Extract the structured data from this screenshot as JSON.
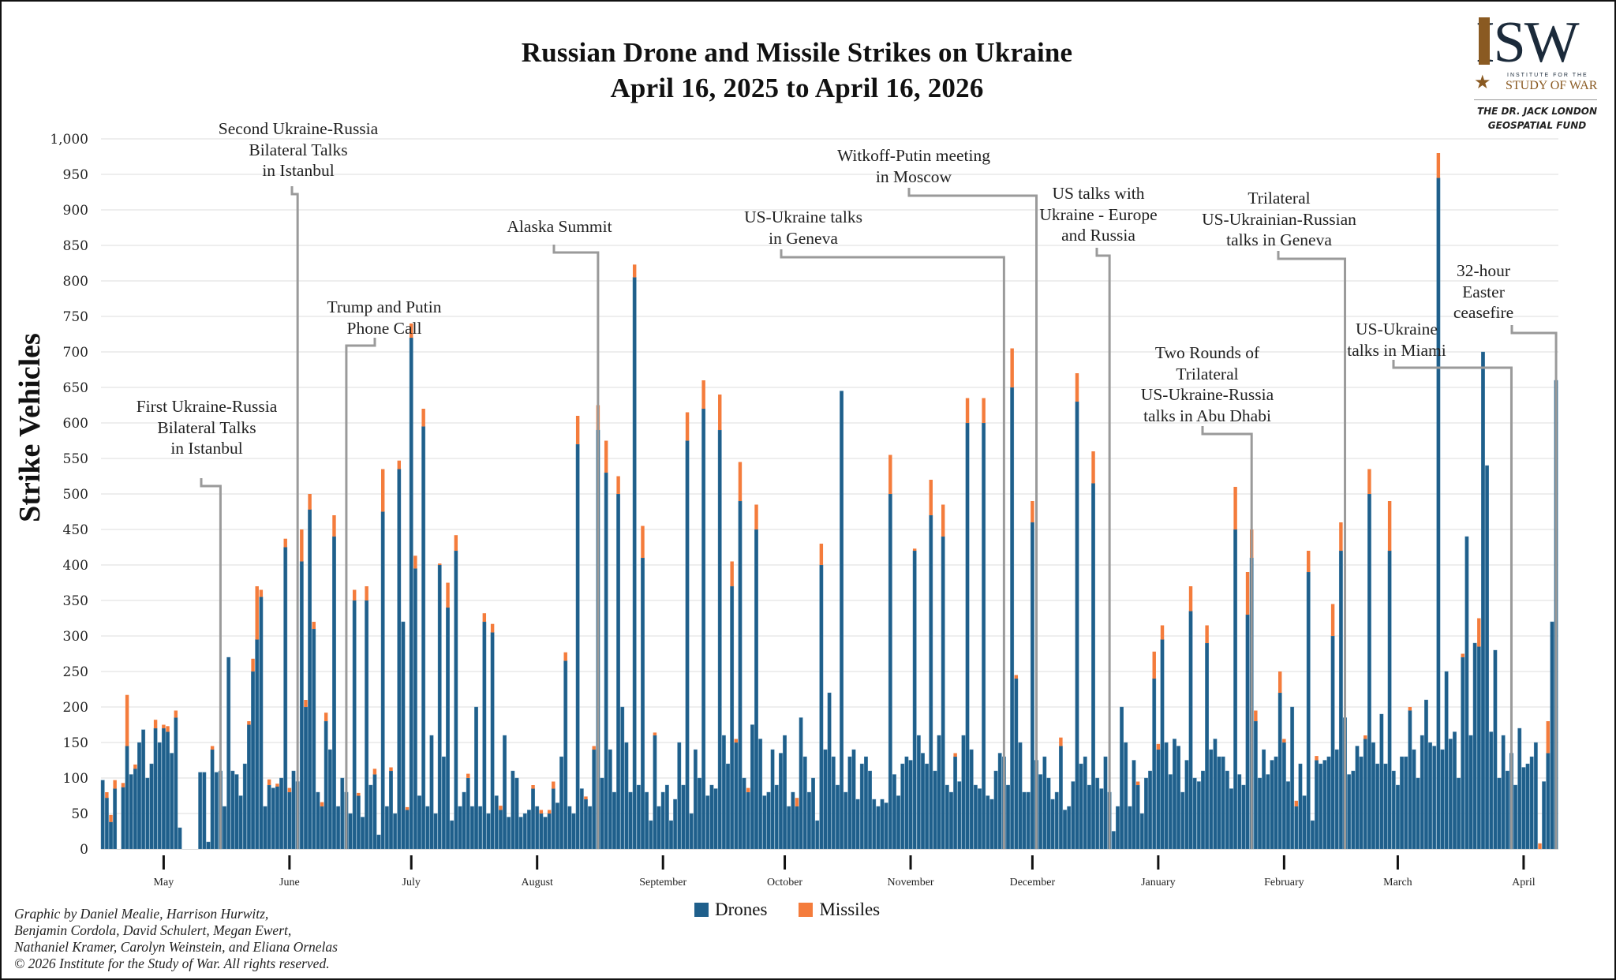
{
  "chart_data": {
    "type": "bar",
    "stacked": true,
    "title": "Russian Drone and Missile Strikes on Ukraine",
    "subtitle": "April 16, 2025 to April 16, 2026",
    "xlabel": "",
    "ylabel": "Strike Vehicles",
    "ylim": [
      0,
      1000
    ],
    "yticks": [
      0,
      50,
      100,
      150,
      200,
      250,
      300,
      350,
      400,
      450,
      500,
      550,
      600,
      650,
      700,
      750,
      800,
      850,
      900,
      950,
      1000
    ],
    "ytick_labels": [
      "0",
      "50",
      "100",
      "150",
      "200",
      "250",
      "300",
      "350",
      "400",
      "450",
      "500",
      "550",
      "600",
      "650",
      "700",
      "750",
      "800",
      "850",
      "900",
      "950",
      "1,000"
    ],
    "grid": true,
    "x_start": "2025-04-16",
    "x_end": "2026-04-16",
    "month_ticks": [
      {
        "label": "May",
        "day_index": 15
      },
      {
        "label": "June",
        "day_index": 46
      },
      {
        "label": "July",
        "day_index": 76
      },
      {
        "label": "August",
        "day_index": 107
      },
      {
        "label": "September",
        "day_index": 138
      },
      {
        "label": "October",
        "day_index": 168
      },
      {
        "label": "November",
        "day_index": 199
      },
      {
        "label": "December",
        "day_index": 229
      },
      {
        "label": "January",
        "day_index": 260
      },
      {
        "label": "February",
        "day_index": 291
      },
      {
        "label": "March",
        "day_index": 319
      },
      {
        "label": "April",
        "day_index": 350
      }
    ],
    "legend": {
      "position": "bottom-center",
      "entries": [
        "Drones",
        "Missiles"
      ]
    },
    "series": [
      {
        "name": "Drones",
        "color": "#1f5f8b",
        "values": [
          97,
          72,
          38,
          85,
          0,
          87,
          145,
          105,
          113,
          150,
          168,
          100,
          120,
          170,
          150,
          170,
          165,
          135,
          185,
          30,
          0,
          0,
          0,
          0,
          108,
          108,
          10,
          140,
          108,
          110,
          60,
          270,
          110,
          105,
          75,
          120,
          175,
          250,
          295,
          355,
          60,
          90,
          86,
          88,
          100,
          425,
          80,
          110,
          95,
          405,
          200,
          478,
          310,
          80,
          60,
          180,
          140,
          440,
          60,
          100,
          80,
          50,
          350,
          75,
          45,
          350,
          90,
          105,
          20,
          475,
          60,
          110,
          50,
          535,
          320,
          55,
          720,
          395,
          75,
          595,
          60,
          160,
          50,
          400,
          130,
          340,
          40,
          420,
          60,
          80,
          100,
          60,
          200,
          60,
          320,
          50,
          305,
          75,
          55,
          160,
          45,
          110,
          100,
          45,
          50,
          55,
          85,
          60,
          50,
          45,
          50,
          85,
          65,
          130,
          265,
          60,
          50,
          570,
          85,
          70,
          60,
          140,
          590,
          100,
          530,
          140,
          80,
          500,
          200,
          150,
          80,
          805,
          90,
          410,
          80,
          40,
          160,
          60,
          80,
          90,
          40,
          70,
          150,
          90,
          575,
          50,
          140,
          100,
          620,
          75,
          90,
          85,
          590,
          160,
          120,
          370,
          150,
          490,
          100,
          80,
          175,
          450,
          155,
          75,
          80,
          140,
          90,
          135,
          160,
          60,
          80,
          60,
          185,
          130,
          80,
          100,
          40,
          400,
          140,
          220,
          130,
          90,
          645,
          80,
          130,
          140,
          70,
          120,
          130,
          110,
          70,
          60,
          70,
          65,
          500,
          105,
          75,
          120,
          130,
          125,
          420,
          160,
          135,
          120,
          470,
          110,
          160,
          440,
          90,
          80,
          130,
          95,
          160,
          600,
          140,
          90,
          85,
          600,
          75,
          70,
          110,
          135,
          130,
          90,
          650,
          240,
          150,
          80,
          80,
          460,
          125,
          105,
          130,
          100,
          70,
          80,
          145,
          55,
          60,
          95,
          630,
          120,
          130,
          90,
          515,
          100,
          85,
          130,
          80,
          25,
          60,
          200,
          150,
          60,
          125,
          90,
          50,
          100,
          110,
          240,
          140,
          295,
          150,
          105,
          155,
          145,
          80,
          125,
          335,
          100,
          95,
          110,
          290,
          140,
          155,
          130,
          130,
          110,
          85,
          450,
          105,
          90,
          330,
          410,
          180,
          100,
          140,
          105,
          125,
          130,
          220,
          150,
          95,
          200,
          60,
          120,
          75,
          390,
          40,
          125,
          120,
          125,
          130,
          300,
          140,
          420,
          185,
          105,
          110,
          145,
          130,
          155,
          500,
          150,
          120,
          190,
          120,
          420,
          110,
          90,
          130,
          130,
          195,
          140,
          100,
          160,
          210,
          150,
          145,
          945,
          140,
          250,
          155,
          165,
          100,
          270,
          440,
          160,
          290,
          285,
          700,
          540,
          165,
          280,
          100,
          160,
          110,
          135,
          90,
          170,
          115,
          120,
          130,
          150,
          0,
          95,
          135,
          320,
          660
        ]
      },
      {
        "name": "Missiles",
        "color": "#f47c3c",
        "values": [
          0,
          8,
          10,
          12,
          0,
          6,
          72,
          0,
          6,
          0,
          0,
          0,
          0,
          12,
          0,
          5,
          8,
          0,
          10,
          0,
          0,
          0,
          0,
          0,
          0,
          0,
          0,
          5,
          0,
          0,
          0,
          0,
          0,
          0,
          0,
          0,
          5,
          18,
          75,
          10,
          0,
          8,
          0,
          4,
          0,
          12,
          6,
          0,
          0,
          45,
          10,
          22,
          10,
          0,
          6,
          12,
          0,
          30,
          0,
          0,
          0,
          0,
          15,
          4,
          0,
          20,
          0,
          8,
          0,
          60,
          0,
          5,
          0,
          12,
          0,
          4,
          20,
          18,
          0,
          25,
          0,
          0,
          0,
          2,
          0,
          35,
          0,
          22,
          0,
          0,
          6,
          0,
          0,
          0,
          12,
          0,
          12,
          0,
          6,
          0,
          0,
          0,
          0,
          0,
          0,
          0,
          5,
          0,
          5,
          0,
          5,
          10,
          0,
          0,
          12,
          0,
          0,
          40,
          0,
          4,
          0,
          5,
          35,
          0,
          45,
          0,
          0,
          25,
          0,
          0,
          0,
          18,
          0,
          45,
          0,
          0,
          4,
          0,
          0,
          0,
          0,
          0,
          0,
          0,
          40,
          0,
          0,
          0,
          40,
          0,
          0,
          0,
          50,
          0,
          0,
          35,
          5,
          55,
          0,
          6,
          0,
          35,
          0,
          0,
          0,
          0,
          0,
          0,
          0,
          0,
          0,
          12,
          0,
          0,
          0,
          0,
          0,
          30,
          0,
          0,
          0,
          0,
          0,
          0,
          0,
          0,
          0,
          0,
          0,
          0,
          0,
          0,
          0,
          0,
          55,
          0,
          0,
          0,
          0,
          0,
          3,
          0,
          0,
          0,
          50,
          0,
          0,
          45,
          0,
          0,
          5,
          0,
          0,
          35,
          0,
          0,
          0,
          35,
          0,
          0,
          0,
          0,
          0,
          0,
          55,
          5,
          0,
          0,
          0,
          30,
          0,
          0,
          0,
          0,
          0,
          0,
          12,
          0,
          0,
          0,
          40,
          0,
          0,
          0,
          45,
          0,
          0,
          0,
          0,
          0,
          0,
          0,
          0,
          0,
          0,
          5,
          0,
          0,
          0,
          38,
          8,
          20,
          0,
          0,
          0,
          0,
          0,
          0,
          35,
          0,
          0,
          0,
          25,
          0,
          0,
          0,
          0,
          0,
          0,
          60,
          0,
          0,
          60,
          40,
          15,
          0,
          0,
          0,
          0,
          0,
          30,
          5,
          0,
          0,
          8,
          0,
          0,
          30,
          0,
          6,
          0,
          0,
          0,
          45,
          0,
          40,
          0,
          0,
          0,
          0,
          0,
          5,
          35,
          0,
          0,
          0,
          0,
          70,
          0,
          0,
          0,
          0,
          5,
          0,
          0,
          0,
          0,
          0,
          0,
          35,
          0,
          0,
          0,
          0,
          0,
          5,
          0,
          0,
          0,
          40,
          0,
          0,
          0,
          0,
          0,
          0,
          0,
          0,
          0,
          0,
          0,
          0,
          0,
          0,
          8,
          0,
          45
        ]
      }
    ],
    "annotations": [
      {
        "text": "First Ukraine-Russia\nBilateral Talks\nin Istanbul",
        "day_index": 29
      },
      {
        "text": "Second Ukraine-Russia\nBilateral Talks\nin Istanbul",
        "day_index": 48
      },
      {
        "text": "Trump and Putin\nPhone Call",
        "day_index": 60
      },
      {
        "text": "Alaska Summit",
        "day_index": 122
      },
      {
        "text": "US-Ukraine talks\nin Geneva",
        "day_index": 222
      },
      {
        "text": "Witkoff-Putin meeting\nin Moscow",
        "day_index": 230
      },
      {
        "text": "US talks with\nUkraine - Europe\nand Russia",
        "day_index": 248
      },
      {
        "text": "Two Rounds of\nTrilateral\nUS-Ukraine-Russia\ntalks in Abu Dhabi",
        "day_index": 283
      },
      {
        "text": "Trilateral\nUS-Ukrainian-Russian\ntalks in Geneva",
        "day_index": 306
      },
      {
        "text": "US-Ukraine\ntalks in Miami",
        "day_index": 347
      },
      {
        "text": "32-hour\nEaster\nceasefire",
        "day_index": 358
      }
    ]
  },
  "header": {
    "title_line1": "Russian Drone and Missile Strikes on Ukraine",
    "title_line2": "April 16, 2025 to April 16, 2026"
  },
  "logo": {
    "wordmark": "ISW",
    "subtitle_small": "INSTITUTE FOR THE",
    "subtitle_large": "STUDY OF WAR",
    "fund_line1": "THE DR. JACK LONDON",
    "fund_line2": "GEOSPATIAL FUND"
  },
  "legend": {
    "drones_label": "Drones",
    "missiles_label": "Missiles",
    "drones_color": "#1f5f8b",
    "missiles_color": "#f47c3c"
  },
  "credits": {
    "line1": "Graphic by Daniel Mealie, Harrison Hurwitz,",
    "line2": "Benjamin Cordola, David Schulert, Megan Ewert,",
    "line3": "Nathaniel Kramer, Carolyn Weinstein, and Eliana Ornelas",
    "line4": "© 2026 Institute for the Study of War. All rights reserved."
  }
}
